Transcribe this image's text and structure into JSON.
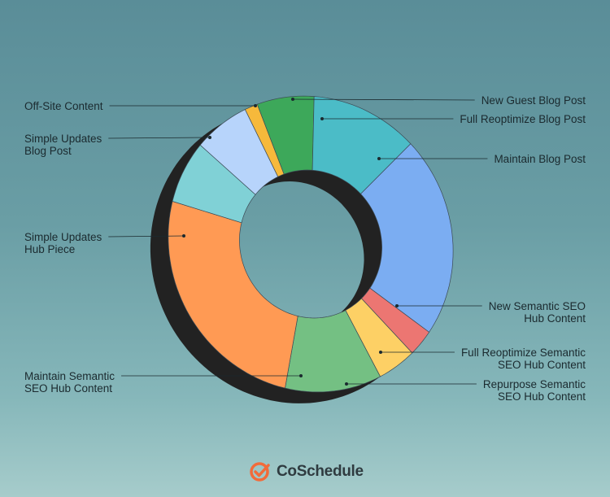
{
  "chart_data": {
    "type": "pie",
    "variant": "donut",
    "slices": [
      {
        "label": "New Guest Blog Post",
        "value": 1.5,
        "color": "#f6b93b"
      },
      {
        "label": "Full Reoptimize Blog Post",
        "value": 6.5,
        "color": "#3da85a"
      },
      {
        "label": "Maintain Blog Post",
        "value": 12,
        "color": "#4bbcc7"
      },
      {
        "label": "New Semantic SEO\nHub Content",
        "value": 22,
        "color": "#7badf2"
      },
      {
        "label": "Full Reoptimize Semantic\nSEO Hub Content",
        "value": 3,
        "color": "#ec7672"
      },
      {
        "label": "Repurpose Semantic\nSEO Hub Content",
        "value": 4.5,
        "color": "#fdd065"
      },
      {
        "label": "Maintain Semantic\nSEO Hub Content",
        "value": 11,
        "color": "#74c083"
      },
      {
        "label": "Simple Updates\nHub Piece",
        "value": 26,
        "color": "#ff9a54"
      },
      {
        "label": "Simple Updates\nBlog Post",
        "value": 7,
        "color": "#80d1d6"
      },
      {
        "label": "Off-Site Content",
        "value": 6.5,
        "color": "#b7d4fb"
      }
    ]
  },
  "brand": {
    "name": "CoSchedule",
    "icon": "coschedule-check-icon",
    "color": "#f26b3a"
  }
}
